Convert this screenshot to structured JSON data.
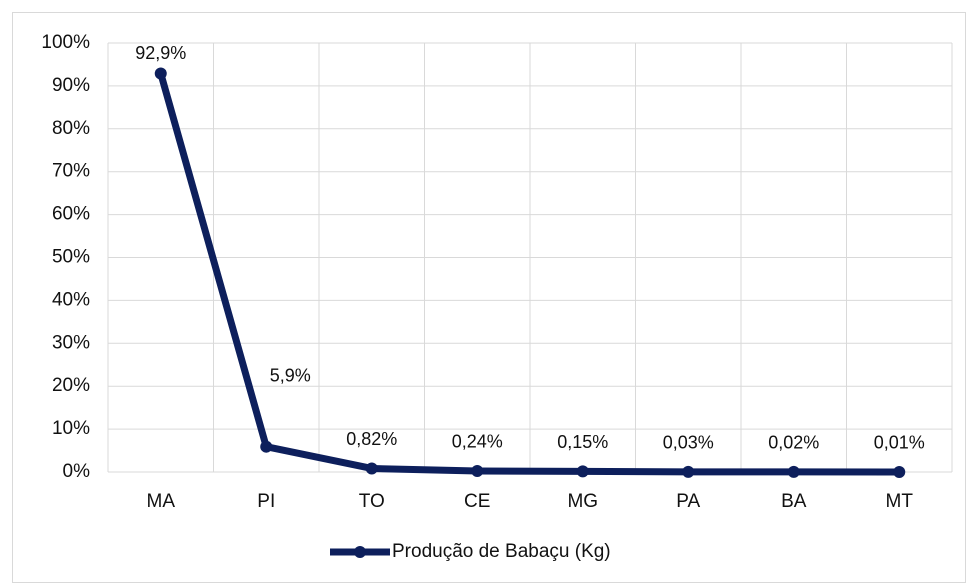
{
  "chart_data": {
    "type": "line",
    "categories": [
      "MA",
      "PI",
      "TO",
      "CE",
      "MG",
      "PA",
      "BA",
      "MT"
    ],
    "series": [
      {
        "name": "Produção de Babaçu (Kg)",
        "color": "#0d1f5c",
        "values": [
          92.9,
          5.9,
          0.82,
          0.24,
          0.15,
          0.03,
          0.02,
          0.01
        ],
        "value_labels": [
          "92,9%",
          "5,9%",
          "0,82%",
          "0,24%",
          "0,15%",
          "0,03%",
          "0,02%",
          "0,01%"
        ]
      }
    ],
    "ylim": [
      0,
      100
    ],
    "yticks": [
      {
        "value": 0,
        "label": "0%"
      },
      {
        "value": 10,
        "label": "10%"
      },
      {
        "value": 20,
        "label": "20%"
      },
      {
        "value": 30,
        "label": "30%"
      },
      {
        "value": 40,
        "label": "40%"
      },
      {
        "value": 50,
        "label": "50%"
      },
      {
        "value": 60,
        "label": "60%"
      },
      {
        "value": 70,
        "label": "70%"
      },
      {
        "value": 80,
        "label": "80%"
      },
      {
        "value": 90,
        "label": "90%"
      },
      {
        "value": 100,
        "label": "100%"
      }
    ],
    "grid": true,
    "legend": "bottom"
  }
}
